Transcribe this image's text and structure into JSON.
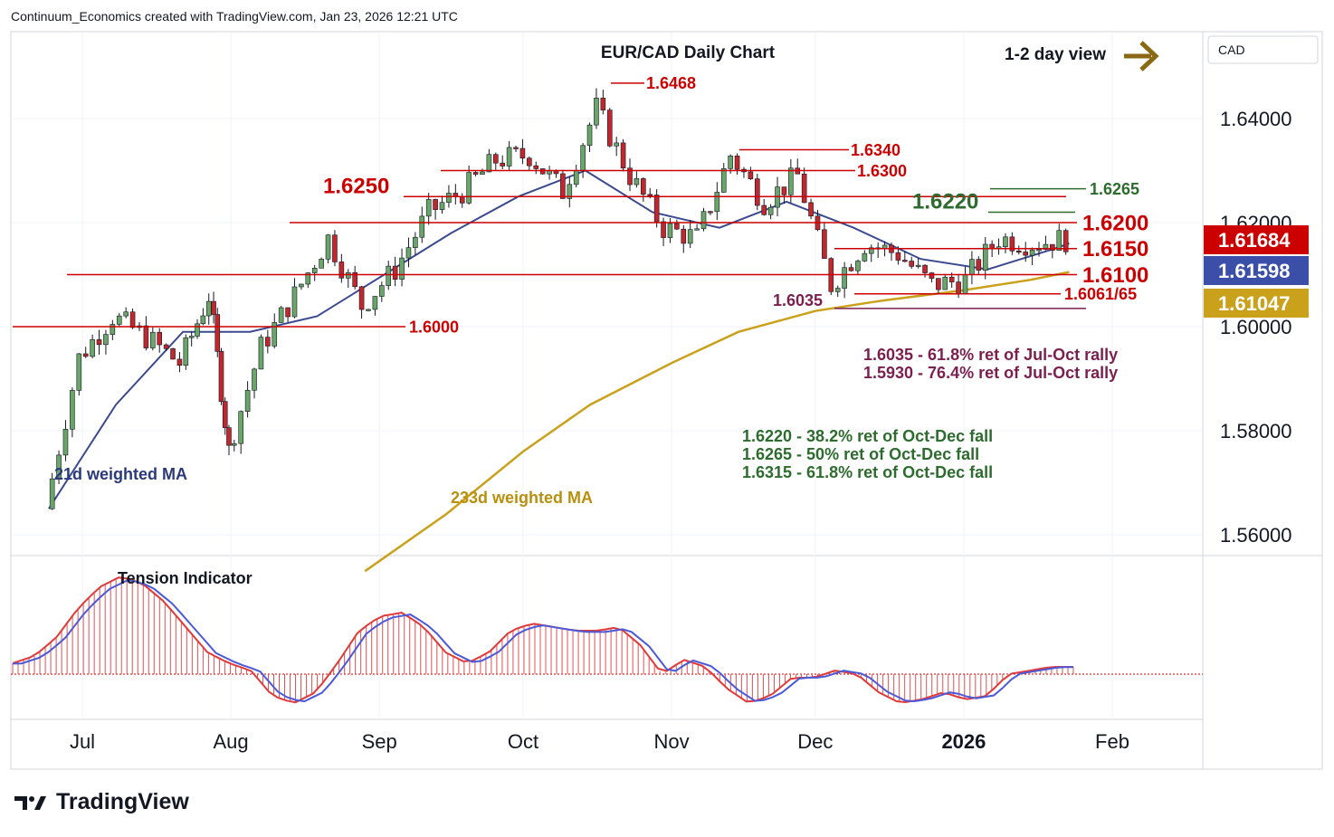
{
  "header": {
    "attribution": "Continuum_Economics created with TradingView.com, Jan 23, 2026 12:21 UTC"
  },
  "footer": {
    "logo_text": "TradingView"
  },
  "currency_label": "CAD",
  "colors": {
    "red": "#cc0000",
    "green": "#2e6b2e",
    "purple": "#7a1f4e",
    "navy": "#2a3a7a",
    "gold": "#c9a11b",
    "up_candle": "#6aa56a",
    "down_candle": "#c0282d",
    "arrow": "#8b6914"
  },
  "chart_data": [
    {
      "type": "line",
      "title": "EUR/CAD Daily Chart",
      "view_label": "1-2 day view",
      "x_ticks": [
        "Jul",
        "Aug",
        "Sep",
        "Oct",
        "Nov",
        "Dec",
        "2026",
        "Feb"
      ],
      "y_ticks": [
        "1.64000",
        "1.62000",
        "1.60000",
        "1.58000",
        "1.56000"
      ],
      "ylim": [
        1.552,
        1.65
      ],
      "price_tags": [
        {
          "value": "1.61684",
          "color": "#cc0000"
        },
        {
          "value": "1.61598",
          "color": "#3b4fa8"
        },
        {
          "value": "1.61047",
          "color": "#c9a11b"
        }
      ],
      "levels": [
        {
          "label": "1.6468",
          "value": 1.6468,
          "color": "#cc0000"
        },
        {
          "label": "1.6340",
          "value": 1.634,
          "color": "#cc0000"
        },
        {
          "label": "1.6300",
          "value": 1.63,
          "color": "#cc0000"
        },
        {
          "label": "1.6265",
          "value": 1.6265,
          "color": "#2e6b2e"
        },
        {
          "label": "1.6250",
          "value": 1.625,
          "color": "#cc0000"
        },
        {
          "label": "1.6220",
          "value": 1.622,
          "color": "#2e6b2e"
        },
        {
          "label": "1.6200",
          "value": 1.62,
          "color": "#cc0000"
        },
        {
          "label": "1.6150",
          "value": 1.615,
          "color": "#cc0000"
        },
        {
          "label": "1.6100",
          "value": 1.61,
          "color": "#cc0000"
        },
        {
          "label": "1.6061/65",
          "value": 1.6063,
          "color": "#cc0000"
        },
        {
          "label": "1.6035",
          "value": 1.6035,
          "color": "#7a1f4e"
        },
        {
          "label": "1.6000",
          "value": 1.6,
          "color": "#cc0000"
        }
      ],
      "annotations": {
        "support_notes": [
          "1.6035 - 61.8% ret of Jul-Oct rally",
          "1.5930 - 76.4% ret of Jul-Oct rally"
        ],
        "resistance_notes": [
          "1.6220 - 38.2% ret of Oct-Dec fall",
          "1.6265 - 50% ret of Oct-Dec fall",
          "1.6315 - 61.8% ret of Oct-Dec fall"
        ],
        "ma21_label": "21d weighted MA",
        "ma233_label": "233d weighted MA"
      },
      "series": [
        {
          "name": "EUR/CAD",
          "x": [
            "2025-06-24",
            "2025-07-01",
            "2025-07-08",
            "2025-07-15",
            "2025-07-22",
            "2025-07-28",
            "2025-08-01",
            "2025-08-08",
            "2025-08-15",
            "2025-08-22",
            "2025-08-29",
            "2025-09-05",
            "2025-09-12",
            "2025-09-19",
            "2025-09-26",
            "2025-10-03",
            "2025-10-10",
            "2025-10-17",
            "2025-10-24",
            "2025-10-31",
            "2025-11-07",
            "2025-11-14",
            "2025-11-21",
            "2025-11-28",
            "2025-12-05",
            "2025-12-12",
            "2025-12-19",
            "2025-12-26",
            "2026-01-02",
            "2026-01-09",
            "2026-01-16",
            "2026-01-23"
          ],
          "values": [
            1.565,
            1.594,
            1.602,
            1.598,
            1.593,
            1.606,
            1.576,
            1.596,
            1.606,
            1.617,
            1.604,
            1.611,
            1.622,
            1.626,
            1.632,
            1.633,
            1.626,
            1.642,
            1.629,
            1.619,
            1.617,
            1.633,
            1.624,
            1.629,
            1.608,
            1.616,
            1.614,
            1.608,
            1.609,
            1.617,
            1.616,
            1.6168
          ]
        },
        {
          "name": "21d weighted MA",
          "x": [
            "2025-06-24",
            "2025-07-08",
            "2025-07-22",
            "2025-08-05",
            "2025-08-19",
            "2025-09-02",
            "2025-09-16",
            "2025-09-30",
            "2025-10-14",
            "2025-10-28",
            "2025-11-11",
            "2025-11-25",
            "2025-12-09",
            "2025-12-23",
            "2026-01-06",
            "2026-01-20",
            "2026-01-23"
          ],
          "values": [
            1.565,
            1.585,
            1.599,
            1.599,
            1.602,
            1.61,
            1.618,
            1.625,
            1.63,
            1.622,
            1.619,
            1.624,
            1.619,
            1.613,
            1.611,
            1.615,
            1.616
          ]
        },
        {
          "name": "233d weighted MA",
          "x": [
            "2025-08-29",
            "2025-09-15",
            "2025-10-01",
            "2025-10-15",
            "2025-11-01",
            "2025-11-15",
            "2025-12-01",
            "2025-12-15",
            "2026-01-01",
            "2026-01-15",
            "2026-01-23"
          ],
          "values": [
            1.553,
            1.564,
            1.576,
            1.585,
            1.593,
            1.599,
            1.603,
            1.605,
            1.607,
            1.609,
            1.6105
          ]
        }
      ]
    },
    {
      "type": "area",
      "title": "Tension Indicator",
      "series": [
        {
          "name": "Tension Indicator",
          "values": [
            0.3,
            0.5,
            1.0,
            1.8,
            2.4,
            2.7,
            2.5,
            2.0,
            1.3,
            0.6,
            0.3,
            0.1,
            -0.6,
            -0.8,
            -0.5,
            0.3,
            1.2,
            1.6,
            1.7,
            1.3,
            0.6,
            0.3,
            0.6,
            1.2,
            1.4,
            1.3,
            1.2,
            1.2,
            1.3,
            0.8,
            0.0,
            0.4,
            0.2,
            -0.4,
            -0.8,
            -0.6,
            -0.1,
            -0.1,
            0.1,
            0.0,
            -0.5,
            -0.8,
            -0.7,
            -0.5,
            -0.7,
            -0.6,
            0.0,
            0.1,
            0.2,
            0.2
          ]
        }
      ]
    }
  ]
}
